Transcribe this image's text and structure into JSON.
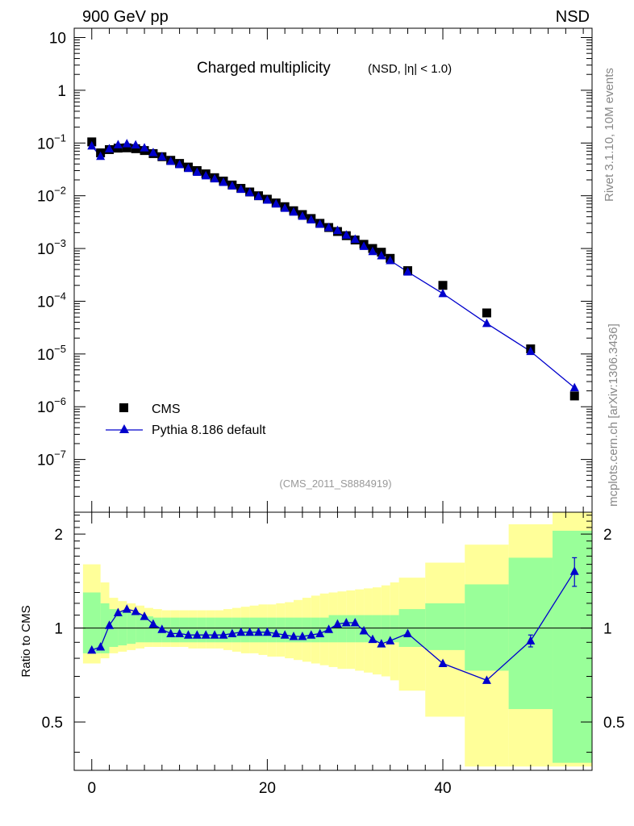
{
  "header": {
    "left_label": "900 GeV pp",
    "right_label": "NSD"
  },
  "side_labels": {
    "rivet": "Rivet 3.1.10,  10M events",
    "mcplots": "mcplots.cern.ch [arXiv:1306.3436]"
  },
  "chart_data": [
    {
      "type": "scatter",
      "title": "Charged multiplicity",
      "subtitle": "(NSD, |η| < 1.0)",
      "analysis_label": "(CMS_2011_S8884919)",
      "xlabel": "",
      "ylabel": "",
      "yscale": "log",
      "ylim": [
        1e-08,
        15
      ],
      "xlim": [
        -2,
        57
      ],
      "y_tick_labels": [
        "10",
        "1",
        "10-1",
        "10-2",
        "10-3",
        "10-4",
        "10-5",
        "10-6",
        "10-7"
      ],
      "legend_position": "lower-left",
      "colors": {
        "data": "#000000",
        "mc": "#0000cc"
      },
      "series": [
        {
          "name": "CMS",
          "marker": "square",
          "x": [
            0,
            1,
            2,
            3,
            4,
            5,
            6,
            7,
            8,
            9,
            10,
            11,
            12,
            13,
            14,
            15,
            16,
            17,
            18,
            19,
            20,
            21,
            22,
            23,
            24,
            25,
            26,
            27,
            28,
            29,
            30,
            31,
            32,
            33,
            34,
            36,
            40,
            45,
            50,
            55
          ],
          "y": [
            0.105,
            0.065,
            0.075,
            0.08,
            0.081,
            0.078,
            0.072,
            0.063,
            0.055,
            0.047,
            0.041,
            0.035,
            0.03,
            0.026,
            0.022,
            0.019,
            0.016,
            0.0138,
            0.0118,
            0.01,
            0.0086,
            0.0073,
            0.0062,
            0.0052,
            0.0044,
            0.0037,
            0.003,
            0.0025,
            0.0021,
            0.00175,
            0.00145,
            0.0012,
            0.001,
            0.00085,
            0.00065,
            0.00038,
            0.0002,
            6e-05,
            1.25e-05,
            1.6e-06
          ]
        },
        {
          "name": "Pythia 8.186 default",
          "marker": "triangle",
          "x": [
            0,
            1,
            2,
            3,
            4,
            5,
            6,
            7,
            8,
            9,
            10,
            11,
            12,
            13,
            14,
            15,
            16,
            17,
            18,
            19,
            20,
            21,
            22,
            23,
            24,
            25,
            26,
            27,
            28,
            29,
            30,
            31,
            32,
            33,
            34,
            36,
            40,
            45,
            50,
            55
          ],
          "y": [
            0.088,
            0.056,
            0.078,
            0.093,
            0.097,
            0.092,
            0.081,
            0.066,
            0.055,
            0.045,
            0.039,
            0.033,
            0.028,
            0.024,
            0.021,
            0.018,
            0.0154,
            0.0133,
            0.0115,
            0.0097,
            0.0083,
            0.007,
            0.0058,
            0.0049,
            0.0041,
            0.0035,
            0.0029,
            0.0025,
            0.0022,
            0.0018,
            0.0015,
            0.0011,
            0.00088,
            0.00073,
            0.00059,
            0.00036,
            0.00014,
            3.8e-05,
            1.12e-05,
            2.3e-06
          ]
        }
      ]
    },
    {
      "type": "line",
      "ylabel": "Ratio to CMS",
      "ylim": [
        0.35,
        2.35
      ],
      "xlim": [
        -2,
        57
      ],
      "y_tick_labels": [
        "2",
        "1",
        "0.5"
      ],
      "x_tick_labels": [
        "0",
        "20",
        "40"
      ],
      "colors": {
        "band_inner": "#99ff99",
        "band_outer": "#ffff99",
        "ratio": "#0000cc"
      },
      "ratio_series": {
        "name": "Pythia 8.186 default / CMS",
        "x": [
          0,
          1,
          2,
          3,
          4,
          5,
          6,
          7,
          8,
          9,
          10,
          11,
          12,
          13,
          14,
          15,
          16,
          17,
          18,
          19,
          20,
          21,
          22,
          23,
          24,
          25,
          26,
          27,
          28,
          29,
          30,
          31,
          32,
          33,
          34,
          36,
          40,
          45,
          50,
          55
        ],
        "y": [
          0.85,
          0.87,
          1.02,
          1.12,
          1.15,
          1.13,
          1.09,
          1.03,
          0.99,
          0.96,
          0.96,
          0.95,
          0.95,
          0.95,
          0.95,
          0.95,
          0.96,
          0.97,
          0.97,
          0.97,
          0.97,
          0.96,
          0.95,
          0.94,
          0.94,
          0.95,
          0.96,
          0.99,
          1.03,
          1.04,
          1.04,
          0.98,
          0.92,
          0.89,
          0.91,
          0.96,
          0.77,
          0.68,
          0.91,
          1.52
        ],
        "err_x": [
          50,
          55
        ],
        "err_y": [
          0.04,
          0.16
        ]
      },
      "bands": {
        "bins": [
          -1,
          1,
          2,
          3,
          4,
          5,
          6,
          7,
          8,
          9,
          10,
          11,
          12,
          13,
          14,
          15,
          16,
          17,
          18,
          19,
          20,
          21,
          22,
          23,
          24,
          25,
          26,
          27,
          28,
          29,
          30,
          31,
          32,
          33,
          34,
          35,
          38,
          42.5,
          47.5,
          52.5,
          57
        ],
        "inner": [
          [
            0.83,
            1.3
          ],
          [
            0.83,
            1.2
          ],
          [
            0.87,
            1.15
          ],
          [
            0.88,
            1.13
          ],
          [
            0.89,
            1.12
          ],
          [
            0.9,
            1.1
          ],
          [
            0.9,
            1.09
          ],
          [
            0.9,
            1.08
          ],
          [
            0.9,
            1.08
          ],
          [
            0.9,
            1.08
          ],
          [
            0.9,
            1.08
          ],
          [
            0.9,
            1.08
          ],
          [
            0.9,
            1.08
          ],
          [
            0.9,
            1.08
          ],
          [
            0.9,
            1.08
          ],
          [
            0.9,
            1.08
          ],
          [
            0.9,
            1.08
          ],
          [
            0.9,
            1.08
          ],
          [
            0.9,
            1.08
          ],
          [
            0.9,
            1.08
          ],
          [
            0.9,
            1.08
          ],
          [
            0.9,
            1.08
          ],
          [
            0.9,
            1.08
          ],
          [
            0.9,
            1.08
          ],
          [
            0.9,
            1.08
          ],
          [
            0.9,
            1.08
          ],
          [
            0.9,
            1.08
          ],
          [
            0.9,
            1.1
          ],
          [
            0.9,
            1.1
          ],
          [
            0.9,
            1.1
          ],
          [
            0.9,
            1.1
          ],
          [
            0.9,
            1.1
          ],
          [
            0.9,
            1.1
          ],
          [
            0.9,
            1.1
          ],
          [
            0.9,
            1.1
          ],
          [
            0.87,
            1.15
          ],
          [
            0.85,
            1.2
          ],
          [
            0.73,
            1.38
          ],
          [
            0.55,
            1.68
          ],
          [
            0.37,
            2.05
          ]
        ],
        "outer": [
          [
            0.77,
            1.6
          ],
          [
            0.8,
            1.4
          ],
          [
            0.83,
            1.25
          ],
          [
            0.84,
            1.22
          ],
          [
            0.85,
            1.2
          ],
          [
            0.86,
            1.18
          ],
          [
            0.87,
            1.16
          ],
          [
            0.87,
            1.15
          ],
          [
            0.87,
            1.14
          ],
          [
            0.87,
            1.14
          ],
          [
            0.87,
            1.14
          ],
          [
            0.86,
            1.14
          ],
          [
            0.86,
            1.14
          ],
          [
            0.86,
            1.14
          ],
          [
            0.86,
            1.14
          ],
          [
            0.85,
            1.15
          ],
          [
            0.84,
            1.16
          ],
          [
            0.83,
            1.17
          ],
          [
            0.83,
            1.18
          ],
          [
            0.82,
            1.19
          ],
          [
            0.81,
            1.19
          ],
          [
            0.81,
            1.2
          ],
          [
            0.8,
            1.21
          ],
          [
            0.79,
            1.23
          ],
          [
            0.78,
            1.25
          ],
          [
            0.77,
            1.27
          ],
          [
            0.76,
            1.29
          ],
          [
            0.75,
            1.3
          ],
          [
            0.74,
            1.31
          ],
          [
            0.74,
            1.32
          ],
          [
            0.73,
            1.33
          ],
          [
            0.72,
            1.34
          ],
          [
            0.71,
            1.35
          ],
          [
            0.7,
            1.37
          ],
          [
            0.68,
            1.4
          ],
          [
            0.63,
            1.45
          ],
          [
            0.52,
            1.62
          ],
          [
            0.36,
            1.85
          ],
          [
            0.36,
            2.15
          ],
          [
            0.36,
            2.35
          ]
        ]
      }
    }
  ]
}
